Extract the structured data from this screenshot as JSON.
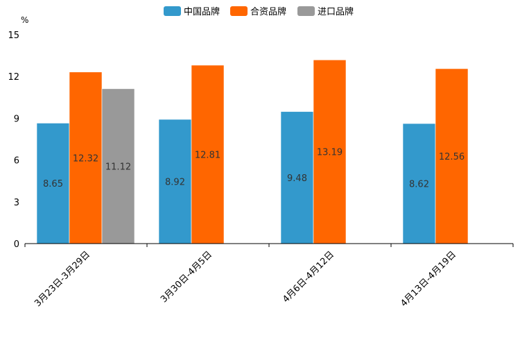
{
  "chart_data": {
    "type": "bar",
    "title": "",
    "xlabel": "",
    "ylabel": "%",
    "ylim": [
      0,
      15
    ],
    "yticks": [
      0,
      3,
      6,
      9,
      12,
      15
    ],
    "grid": false,
    "legend_position": "top-center",
    "categories": [
      "3月23日-3月29日",
      "3月30日-4月5日",
      "4月6日-4月12日",
      "4月13日-4月19日"
    ],
    "series": [
      {
        "name": "中国品牌",
        "color": "#3399cc",
        "values": [
          8.65,
          8.92,
          9.48,
          8.62
        ]
      },
      {
        "name": "合资品牌",
        "color": "#ff6600",
        "values": [
          12.32,
          12.81,
          13.19,
          12.56
        ]
      },
      {
        "name": "进口品牌",
        "color": "#999999",
        "values": [
          11.12,
          null,
          null,
          null
        ]
      }
    ]
  }
}
